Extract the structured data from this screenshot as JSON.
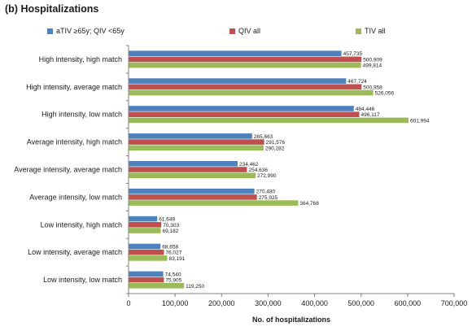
{
  "panel": {
    "title_prefix": "(b)",
    "title": "Hospitalizations"
  },
  "chart_data": {
    "type": "bar",
    "orientation": "horizontal",
    "title": "(b) Hospitalizations",
    "xlabel": "No. of hospitalizations",
    "ylabel": "",
    "xlim": [
      0,
      700000
    ],
    "x_ticks": [
      "0",
      "100,000",
      "200,000",
      "300,000",
      "400,000",
      "500,000",
      "600,000",
      "700,000"
    ],
    "grid": false,
    "legend_position": "top",
    "categories": [
      "High intensity, high match",
      "High intensity, average match",
      "High intensity, low match",
      "Average intensity, high match",
      "Average intensity, average match",
      "Average intensity, low match",
      "Low intensity, high match",
      "Low intensity, average match",
      "Low intensity, low match"
    ],
    "series": [
      {
        "name": "aTIV ≥65y; QIV <65y",
        "color": "#4f81bd",
        "values": [
          457735,
          467724,
          484446,
          265663,
          234462,
          270480,
          61649,
          68658,
          74540
        ],
        "labels": [
          "457,735",
          "467,724",
          "484,446",
          "265,663",
          "234,462",
          "270,480",
          "61,649",
          "68,658",
          "74,540"
        ]
      },
      {
        "name": "QIV all",
        "color": "#c0504d",
        "values": [
          500909,
          500958,
          496117,
          291576,
          254636,
          275925,
          70303,
          76027,
          75905
        ],
        "labels": [
          "500,909",
          "500,958",
          "496,117",
          "291,576",
          "254,636",
          "275,925",
          "70,303",
          "76,027",
          "75,905"
        ]
      },
      {
        "name": "TIV all",
        "color": "#9bbb59",
        "values": [
          499814,
          526056,
          601994,
          290282,
          272990,
          364768,
          69182,
          83191,
          119250
        ],
        "labels": [
          "499,814",
          "526,056",
          "601,994",
          "290,282",
          "272,990",
          "364,768",
          "69,182",
          "83,191",
          "119,250"
        ]
      }
    ]
  }
}
